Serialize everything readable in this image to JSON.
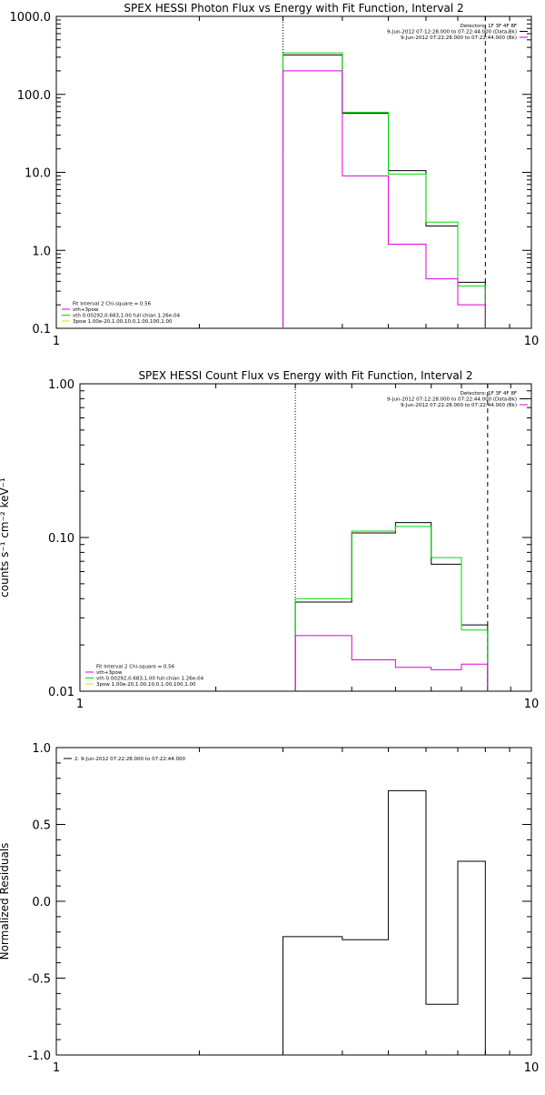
{
  "chart_data": [
    {
      "type": "line",
      "title": "SPEX HESSI Photon Flux vs Energy with Fit Function, Interval 2",
      "xlabel": "",
      "ylabel": "",
      "xscale": "log",
      "yscale": "log",
      "xlim": [
        1,
        10
      ],
      "ylim": [
        0.1,
        1000
      ],
      "xticklabels": [
        {
          "v": 1,
          "t": "1"
        },
        {
          "v": 10,
          "t": "10"
        }
      ],
      "yticklabels": [
        {
          "v": 1000,
          "t": "1000.0"
        },
        {
          "v": 100,
          "t": "100.0"
        },
        {
          "v": 10,
          "t": "10.0"
        },
        {
          "v": 1,
          "t": "1.0"
        },
        {
          "v": 0.1,
          "t": "0.1"
        }
      ],
      "bin_edges": [
        3,
        4,
        5,
        6,
        7,
        8
      ],
      "series": [
        {
          "color": "#000000",
          "values": [
            320,
            57,
            10.5,
            2.05,
            0.39
          ]
        },
        {
          "color": "#00dd00",
          "values": [
            340,
            59,
            9.5,
            2.3,
            0.35
          ]
        },
        {
          "color": "#dd00dd",
          "values": [
            200,
            9,
            1.2,
            0.43,
            0.2
          ]
        }
      ],
      "vlines": [
        {
          "x": 3,
          "style": "dotted",
          "color": "#000000"
        },
        {
          "x": 8,
          "style": "dashed",
          "color": "#000000"
        }
      ],
      "legend_topright": {
        "position": "top-right",
        "lines": [
          {
            "text": "Detectors: 1F 3F 4F 8F",
            "color": ""
          },
          {
            "text": "9-Jun-2012 07:12:28.000 to 07:22:44.000 (Data-Bk)",
            "color": "#000000"
          },
          {
            "text": "9-Jun-2012 07:22:28.000 to 07:22:44.000 (Bk)",
            "color": "#dd00dd"
          }
        ]
      },
      "legend_bottomleft": {
        "position": "bottom-left",
        "lines": [
          {
            "text": "Fit Interval 2   Chi-square = 0.56",
            "color": ""
          },
          {
            "text": "vth+3pow",
            "color": "#dd00dd"
          },
          {
            "text": "vth 0.00292,0.683,1.00  full chian 1.26e-04",
            "color": "#00dd00"
          },
          {
            "text": "3pow 1.00e-20,1.00,10.0,1.00,100,1.00",
            "color": "#dddd00"
          }
        ]
      }
    },
    {
      "type": "line",
      "title": "SPEX HESSI Count Flux vs Energy with Fit Function, Interval 2",
      "xlabel": "",
      "ylabel": "counts s⁻¹ cm⁻² keV⁻¹",
      "xscale": "log",
      "yscale": "log",
      "xlim": [
        1,
        10
      ],
      "ylim": [
        0.01,
        1
      ],
      "xticklabels": [
        {
          "v": 1,
          "t": "1"
        },
        {
          "v": 10,
          "t": "10"
        }
      ],
      "yticklabels": [
        {
          "v": 1,
          "t": "1.00"
        },
        {
          "v": 0.1,
          "t": "0.10"
        },
        {
          "v": 0.01,
          "t": "0.01"
        }
      ],
      "bin_edges": [
        3,
        4,
        5,
        6,
        7,
        8
      ],
      "series": [
        {
          "color": "#000000",
          "values": [
            0.038,
            0.107,
            0.125,
            0.067,
            0.027
          ]
        },
        {
          "color": "#00dd00",
          "values": [
            0.04,
            0.11,
            0.118,
            0.074,
            0.025
          ]
        },
        {
          "color": "#dd00dd",
          "values": [
            0.023,
            0.016,
            0.0143,
            0.0138,
            0.015
          ]
        }
      ],
      "vlines": [
        {
          "x": 3,
          "style": "dotted",
          "color": "#000000"
        },
        {
          "x": 8,
          "style": "dashed",
          "color": "#000000"
        }
      ],
      "legend_topright": {
        "position": "top-right",
        "lines": [
          {
            "text": "Detectors: 1F 3F 4F 8F",
            "color": ""
          },
          {
            "text": "9-Jun-2012 07:12:28.000 to 07:22:44.000 (Data-Bk)",
            "color": "#000000"
          },
          {
            "text": "9-Jun-2012 07:22:28.000 to 07:22:44.000 (Bk)",
            "color": "#dd00dd"
          }
        ]
      },
      "legend_bottomleft": {
        "position": "bottom-left",
        "lines": [
          {
            "text": "Fit Interval 2   Chi-square = 0.56",
            "color": ""
          },
          {
            "text": "vth+3pow",
            "color": "#dd00dd"
          },
          {
            "text": "vth 0.00292,0.683,1.00  full chian 1.26e-04",
            "color": "#00dd00"
          },
          {
            "text": "3pow 1.00e-20,1.00,10.0,1.00,100,1.00",
            "color": "#dddd00"
          }
        ]
      }
    },
    {
      "type": "line",
      "title": "",
      "xlabel": "",
      "ylabel": "Normalized Residuals",
      "xscale": "log",
      "yscale": "linear",
      "xlim": [
        1,
        10
      ],
      "ylim": [
        -1,
        1
      ],
      "xticklabels": [
        {
          "v": 1,
          "t": "1"
        },
        {
          "v": 10,
          "t": "10"
        }
      ],
      "yticklabels": [
        {
          "v": 1,
          "t": "1.0"
        },
        {
          "v": 0.5,
          "t": "0.5"
        },
        {
          "v": 0,
          "t": "0.0"
        },
        {
          "v": -0.5,
          "t": "-0.5"
        },
        {
          "v": -1,
          "t": "-1.0"
        }
      ],
      "bin_edges": [
        3,
        4,
        5,
        6,
        7,
        8
      ],
      "series": [
        {
          "color": "#000000",
          "values": [
            -0.23,
            -0.25,
            0.72,
            -0.67,
            0.26
          ]
        }
      ],
      "vlines": [],
      "legend_topleft": {
        "position": "top-left",
        "lines": [
          {
            "text": "2.  9-Jun-2012 07:22:28.000 to 07:22:44.000",
            "color": "#000000"
          }
        ]
      }
    }
  ]
}
